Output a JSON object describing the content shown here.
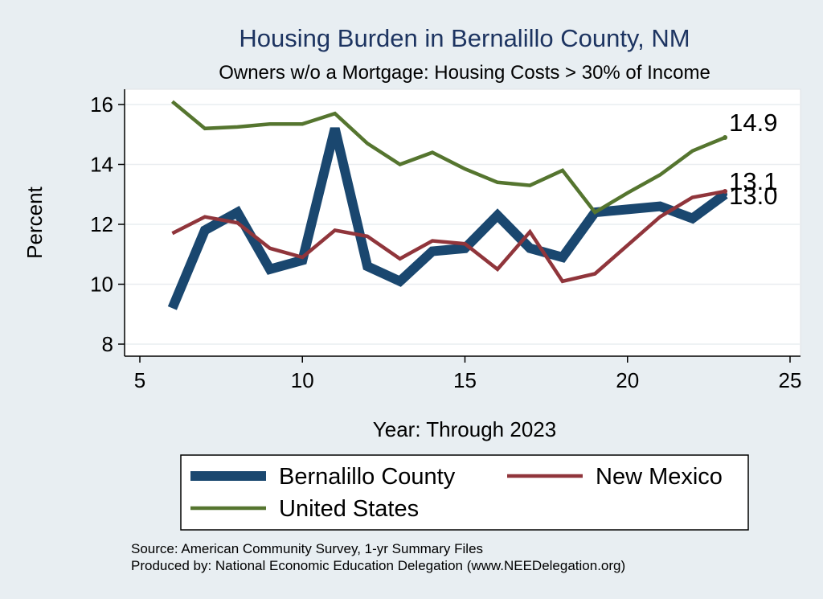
{
  "chart_data": {
    "type": "line",
    "title": "Housing Burden in Bernalillo County, NM",
    "subtitle": "Owners w/o a Mortgage: Housing Costs > 30% of Income",
    "xlabel": "Year: Through 2023",
    "ylabel": "Percent",
    "xlim": [
      5,
      25
    ],
    "ylim": [
      8,
      16
    ],
    "xticks": [
      5,
      10,
      15,
      20,
      25
    ],
    "yticks": [
      8,
      10,
      12,
      14,
      16
    ],
    "grid": true,
    "legend_position": "bottom",
    "series": [
      {
        "name": "Bernalillo County",
        "color": "#1a476f",
        "x": [
          6,
          7,
          8,
          9,
          10,
          11,
          12,
          13,
          14,
          15,
          16,
          17,
          18,
          19,
          20,
          21,
          22,
          23
        ],
        "values": [
          9.2,
          11.8,
          12.4,
          10.5,
          10.8,
          15.2,
          10.6,
          10.1,
          11.1,
          11.2,
          12.3,
          11.2,
          10.9,
          12.4,
          12.5,
          12.6,
          12.2,
          13.0
        ],
        "end_label": "13.0"
      },
      {
        "name": "New Mexico",
        "color": "#90353b",
        "x": [
          6,
          7,
          8,
          9,
          10,
          11,
          12,
          13,
          14,
          15,
          16,
          17,
          18,
          19,
          20,
          21,
          22,
          23
        ],
        "values": [
          11.7,
          12.25,
          12.05,
          11.2,
          10.9,
          11.8,
          11.6,
          10.85,
          11.45,
          11.35,
          10.5,
          11.75,
          10.1,
          10.35,
          11.3,
          12.25,
          12.9,
          13.1
        ],
        "end_label": "13.1"
      },
      {
        "name": "United States",
        "color": "#55752f",
        "x": [
          6,
          7,
          8,
          9,
          10,
          11,
          12,
          13,
          14,
          15,
          16,
          17,
          18,
          19,
          20,
          21,
          22,
          23
        ],
        "values": [
          16.1,
          15.2,
          15.25,
          15.35,
          15.35,
          15.7,
          14.7,
          14.0,
          14.4,
          13.85,
          13.4,
          13.3,
          13.8,
          12.4,
          13.05,
          13.65,
          14.45,
          14.9
        ],
        "end_label": "14.9"
      }
    ]
  },
  "source_note": "Source: American Community Survey, 1-yr Summary Files",
  "produced_note": "Produced by: National Economic Education Delegation (www.NEEDelegation.org)"
}
